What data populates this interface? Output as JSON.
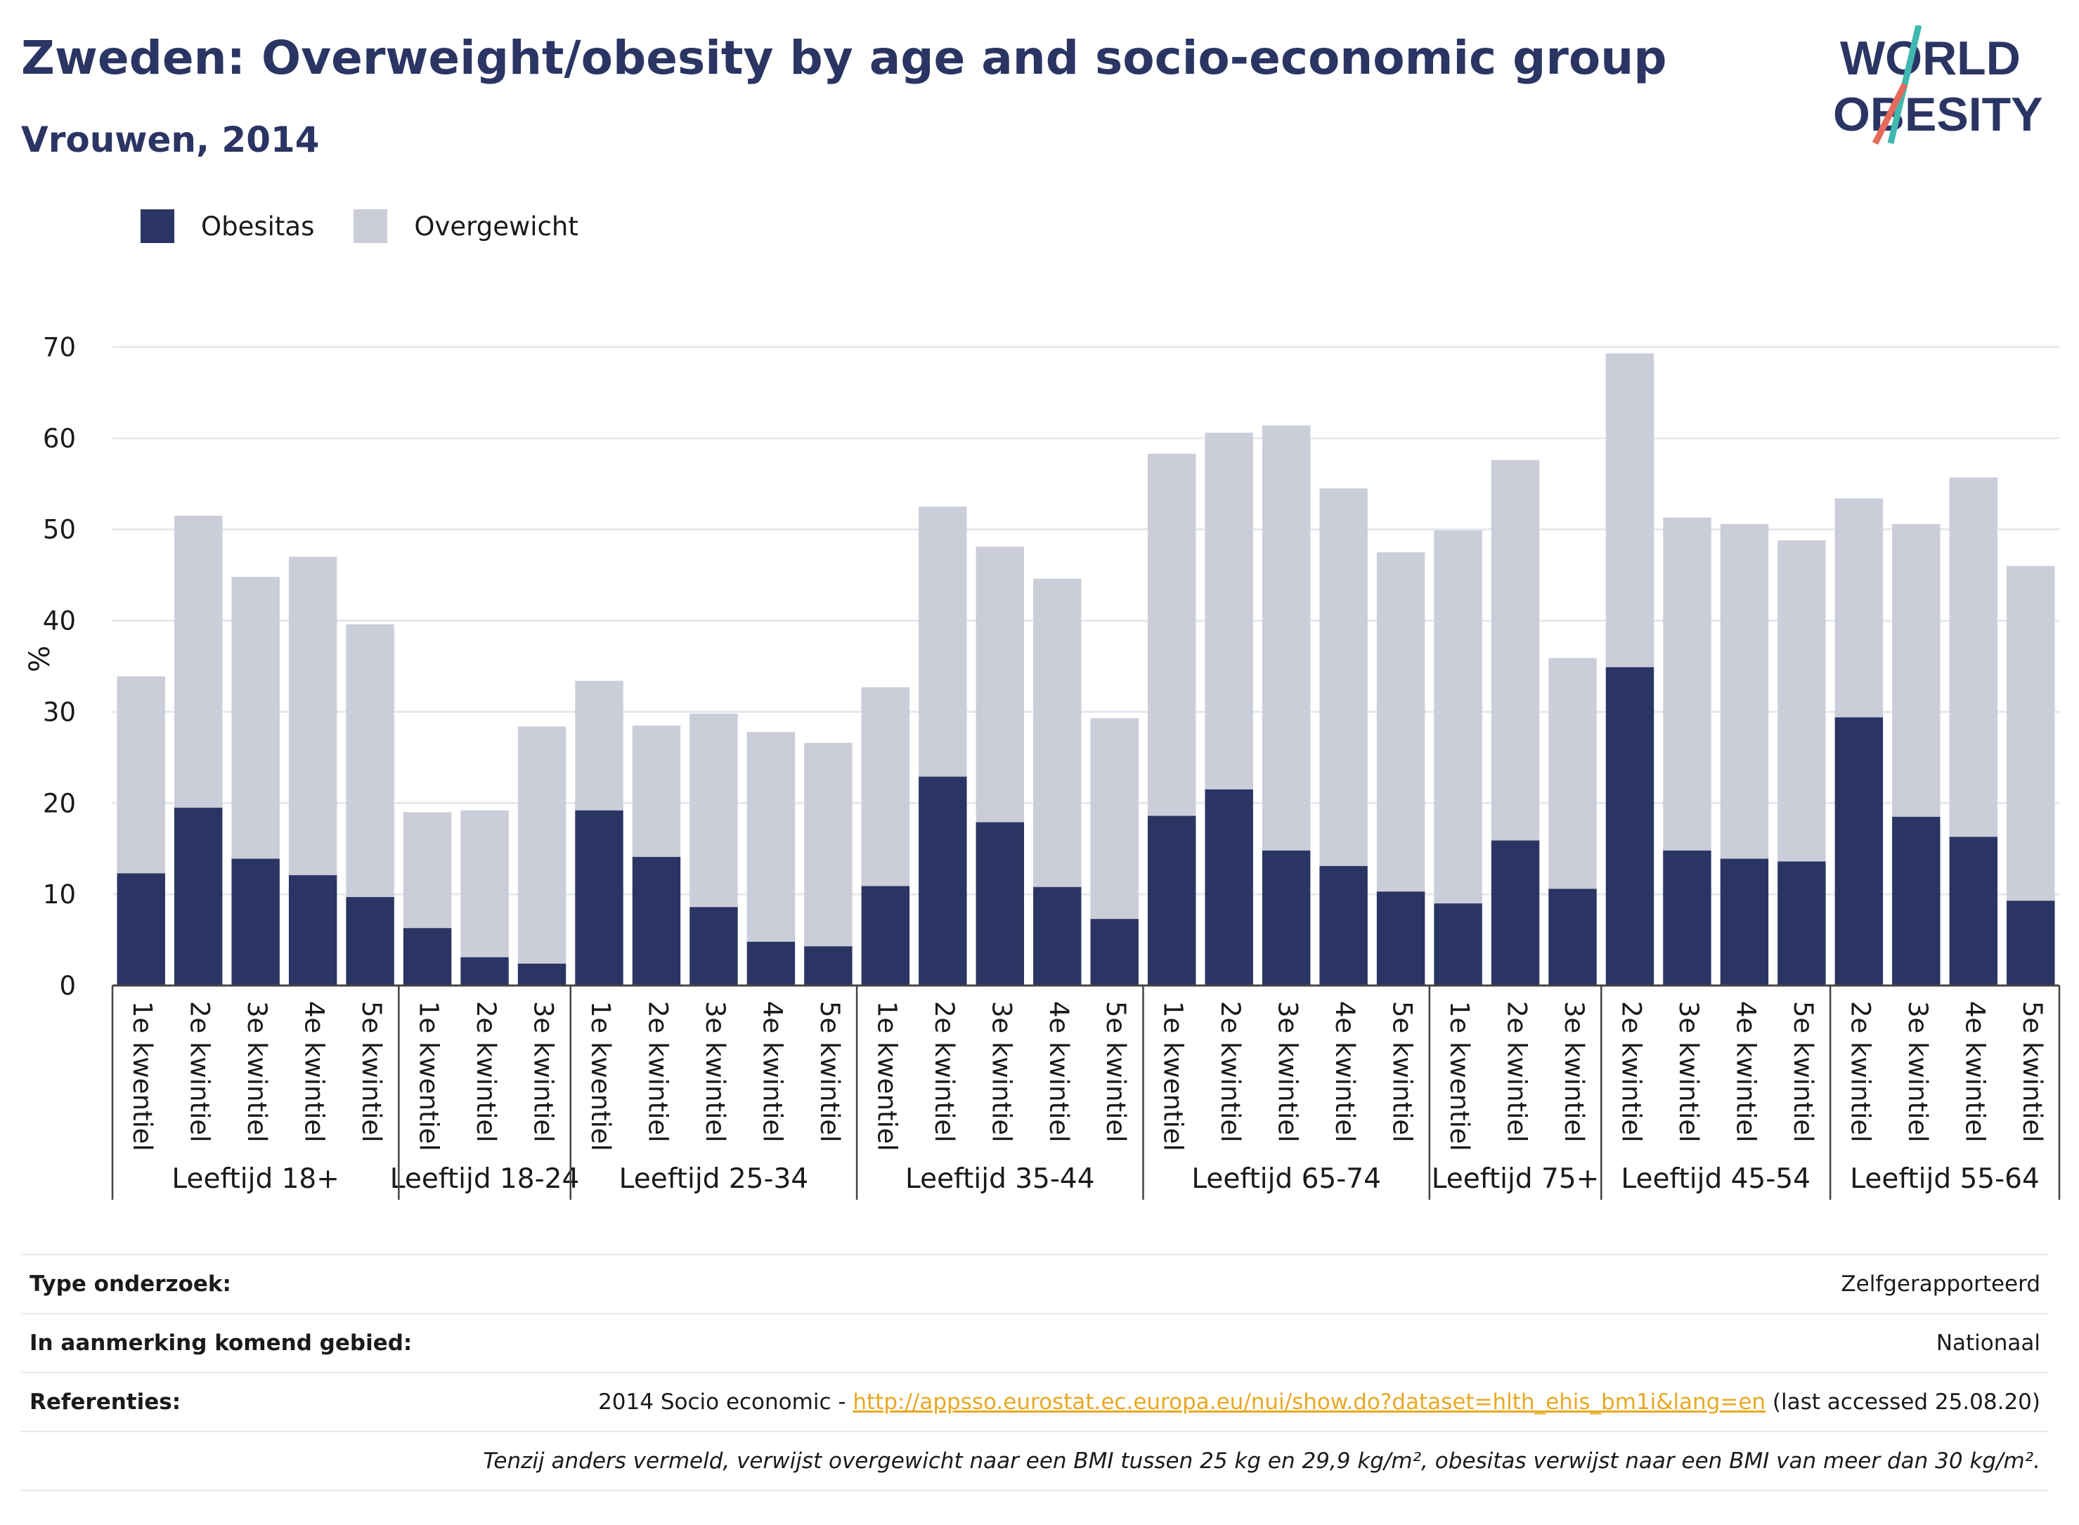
{
  "header": {
    "title": "Zweden: Overweight/obesity by age and socio-economic group",
    "subtitle": "Vrouwen, 2014"
  },
  "logo": {
    "line1": "WORLD",
    "line2": "OBESITY"
  },
  "colors": {
    "obesity": "#2a3563",
    "overweight": "#cbcdd9",
    "title": "#2a3563",
    "link": "#e8a823",
    "grid": "#e6e8f0"
  },
  "chart_data": {
    "type": "bar",
    "stacked": true,
    "ylabel": "%",
    "ylim": [
      0,
      70
    ],
    "yticks": [
      0,
      10,
      20,
      30,
      40,
      50,
      60,
      70
    ],
    "grid": true,
    "legend_position": "top-left",
    "groups": [
      {
        "label": "Leeftijd 18+",
        "categories": [
          "1e kwentiel",
          "2e kwintiel",
          "3e kwintiel",
          "4e kwintiel",
          "5e kwintiel"
        ],
        "obesitas": [
          12.3,
          19.5,
          13.9,
          12.1,
          9.7
        ],
        "total": [
          33.9,
          51.5,
          44.8,
          47.0,
          39.6
        ]
      },
      {
        "label": "Leeftijd 18-24",
        "categories": [
          "1e kwentiel",
          "2e kwintiel",
          "3e kwintiel"
        ],
        "obesitas": [
          6.3,
          3.1,
          2.4
        ],
        "total": [
          19.0,
          19.2,
          28.4
        ]
      },
      {
        "label": "Leeftijd 25-34",
        "categories": [
          "1e kwentiel",
          "2e kwintiel",
          "3e kwintiel",
          "4e kwintiel",
          "5e kwintiel"
        ],
        "obesitas": [
          19.2,
          14.1,
          8.6,
          4.8,
          4.3
        ],
        "total": [
          33.4,
          28.5,
          29.8,
          27.8,
          26.6
        ]
      },
      {
        "label": "Leeftijd 35-44",
        "categories": [
          "1e kwentiel",
          "2e kwintiel",
          "3e kwintiel",
          "4e kwintiel",
          "5e kwintiel"
        ],
        "obesitas": [
          10.9,
          22.9,
          17.9,
          10.8,
          7.3
        ],
        "total": [
          32.7,
          52.5,
          48.1,
          44.6,
          29.3
        ]
      },
      {
        "label": "Leeftijd 65-74",
        "categories": [
          "1e kwentiel",
          "2e kwintiel",
          "3e kwintiel",
          "4e kwintiel",
          "5e kwintiel"
        ],
        "obesitas": [
          18.6,
          21.5,
          14.8,
          13.1,
          10.3
        ],
        "total": [
          58.3,
          60.6,
          61.4,
          54.5,
          47.5
        ]
      },
      {
        "label": "Leeftijd 75+",
        "categories": [
          "1e kwentiel",
          "2e kwintiel",
          "3e kwintiel"
        ],
        "obesitas": [
          9.0,
          15.9,
          10.6
        ],
        "total": [
          49.9,
          57.6,
          35.9
        ]
      },
      {
        "label": "Leeftijd 45-54",
        "categories": [
          "2e kwintiel",
          "3e kwintiel",
          "4e kwintiel",
          "5e kwintiel"
        ],
        "obesitas": [
          34.9,
          14.8,
          13.9,
          13.6
        ],
        "total": [
          69.3,
          51.3,
          50.6,
          48.8
        ]
      },
      {
        "label": "Leeftijd 55-64",
        "categories": [
          "2e kwintiel",
          "3e kwintiel",
          "4e kwintiel",
          "5e kwintiel"
        ],
        "obesitas": [
          29.4,
          18.5,
          16.3,
          9.3
        ],
        "total": [
          53.4,
          50.6,
          55.7,
          46.0
        ]
      }
    ],
    "series": [
      {
        "name": "Obesitas",
        "color": "#2a3563"
      },
      {
        "name": "Overgewicht",
        "color": "#cbcdd9"
      }
    ]
  },
  "info": {
    "survey_type_label": "Type onderzoek:",
    "survey_type_value": "Zelfgerapporteerd",
    "area_label": "In aanmerking komend gebied:",
    "area_value": "Nationaal",
    "references_label": "Referenties:",
    "references_prefix": "2014 Socio economic - ",
    "references_link": "http://appsso.eurostat.ec.europa.eu/nui/show.do?dataset=hlth_ehis_bm1i&lang=en",
    "references_suffix": " (last accessed 25.08.20)",
    "note": "Tenzij anders vermeld, verwijst overgewicht naar een BMI tussen 25 kg en 29,9 kg/m², obesitas verwijst naar een BMI van meer dan 30 kg/m²."
  }
}
